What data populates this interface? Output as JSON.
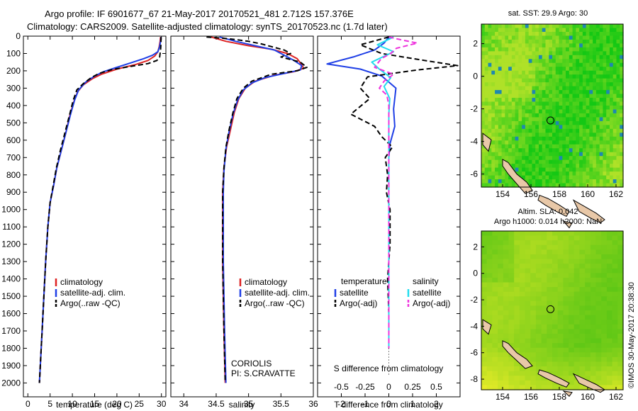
{
  "title": {
    "line1": "Argo profile: IF 6901677_67 21-May-2017 20170521_481 2.712S 157.376E",
    "line2": "Climatology: CARS2009. Satellite-adjusted climatology: synTS_20170523.nc (1.7d later)"
  },
  "colors": {
    "climatology": "#dd2222",
    "satellite": "#1f3fe6",
    "argo": "#000000",
    "sat_salinity": "#22ddee",
    "argo_salinity_adj": "#ee33dd"
  },
  "footer": {
    "institution": "CORIOLIS",
    "pi": "PI: S.CRAVATTE",
    "stamp": "©IMOS 30-May-2017 20:38:30"
  },
  "chart_data": [
    {
      "id": "temperature",
      "type": "line",
      "xlabel": "temperature (deg C)",
      "ylabel": "",
      "xlim": [
        -1,
        31
      ],
      "ylim": [
        2080,
        0
      ],
      "xticks": [
        0,
        5,
        10,
        15,
        20,
        25,
        30
      ],
      "yticks": [
        0,
        100,
        200,
        300,
        400,
        500,
        600,
        700,
        800,
        900,
        1000,
        1100,
        1200,
        1300,
        1400,
        1500,
        1600,
        1700,
        1800,
        1900,
        2000
      ],
      "legend": [
        "climatology",
        "satellite-adj. clim.",
        "Argo(..raw -QC)"
      ],
      "series": [
        {
          "name": "climatology",
          "style": "solid",
          "color_key": "climatology",
          "points": [
            [
              29.8,
              5
            ],
            [
              29.7,
              30
            ],
            [
              29.5,
              60
            ],
            [
              29.2,
              90
            ],
            [
              28.5,
              115
            ],
            [
              27,
              140
            ],
            [
              24,
              165
            ],
            [
              20,
              190
            ],
            [
              16.5,
              220
            ],
            [
              14.5,
              245
            ],
            [
              12.5,
              280
            ],
            [
              11.2,
              320
            ],
            [
              10.3,
              380
            ],
            [
              9.4,
              460
            ],
            [
              8.5,
              560
            ],
            [
              7.5,
              660
            ],
            [
              6.5,
              760
            ],
            [
              5.8,
              860
            ],
            [
              5,
              960
            ],
            [
              4.5,
              1100
            ],
            [
              4,
              1300
            ],
            [
              3.6,
              1500
            ],
            [
              3.2,
              1700
            ],
            [
              2.9,
              1850
            ],
            [
              2.6,
              2000
            ]
          ]
        },
        {
          "name": "satellite-adj. clim.",
          "style": "solid",
          "color_key": "satellite",
          "points": [
            [
              29.9,
              5
            ],
            [
              29.8,
              30
            ],
            [
              29.6,
              60
            ],
            [
              29.2,
              90
            ],
            [
              28,
              110
            ],
            [
              26,
              130
            ],
            [
              23,
              155
            ],
            [
              20,
              180
            ],
            [
              17,
              205
            ],
            [
              15,
              230
            ],
            [
              13,
              265
            ],
            [
              11.4,
              310
            ],
            [
              10.5,
              370
            ],
            [
              9.6,
              450
            ],
            [
              8.6,
              550
            ],
            [
              7.5,
              660
            ],
            [
              6.5,
              760
            ],
            [
              5.8,
              860
            ],
            [
              5,
              960
            ],
            [
              4.5,
              1100
            ],
            [
              4,
              1300
            ],
            [
              3.6,
              1500
            ],
            [
              3.2,
              1700
            ],
            [
              2.9,
              1850
            ],
            [
              2.6,
              2000
            ]
          ]
        },
        {
          "name": "Argo(..raw -QC)",
          "style": "dashed",
          "color_key": "argo",
          "points": [
            [
              29.9,
              5
            ],
            [
              29.9,
              40
            ],
            [
              29.8,
              80
            ],
            [
              29.6,
              120
            ],
            [
              29,
              140
            ],
            [
              27,
              158
            ],
            [
              23,
              175
            ],
            [
              19,
              192
            ],
            [
              16,
              215
            ],
            [
              14.2,
              240
            ],
            [
              12.4,
              275
            ],
            [
              11,
              310
            ],
            [
              10.2,
              370
            ],
            [
              9.5,
              440
            ],
            [
              8.5,
              540
            ],
            [
              7.3,
              660
            ],
            [
              6.4,
              760
            ],
            [
              5.7,
              860
            ],
            [
              5,
              960
            ],
            [
              4.5,
              1100
            ],
            [
              4,
              1300
            ],
            [
              3.6,
              1500
            ],
            [
              3.2,
              1700
            ],
            [
              2.9,
              1850
            ],
            [
              2.6,
              2000
            ]
          ]
        }
      ]
    },
    {
      "id": "salinity",
      "type": "line",
      "xlabel": "salinity",
      "ylabel": "",
      "xlim": [
        33.8,
        36.0
      ],
      "ylim": [
        2080,
        0
      ],
      "xticks": [
        34,
        34.5,
        35,
        35.5,
        36
      ],
      "legend": [
        "climatology",
        "satellite-adj. clim.",
        "Argo(..raw -QC)"
      ],
      "series": [
        {
          "name": "climatology",
          "style": "solid",
          "color_key": "climatology",
          "points": [
            [
              34.42,
              5
            ],
            [
              34.65,
              30
            ],
            [
              35.0,
              55
            ],
            [
              35.35,
              75
            ],
            [
              35.6,
              100
            ],
            [
              35.75,
              130
            ],
            [
              35.82,
              165
            ],
            [
              35.85,
              185
            ],
            [
              35.7,
              205
            ],
            [
              35.4,
              225
            ],
            [
              35.1,
              260
            ],
            [
              34.95,
              300
            ],
            [
              34.85,
              360
            ],
            [
              34.78,
              440
            ],
            [
              34.72,
              540
            ],
            [
              34.66,
              640
            ],
            [
              34.62,
              760
            ],
            [
              34.6,
              900
            ],
            [
              34.6,
              1100
            ],
            [
              34.6,
              1300
            ],
            [
              34.61,
              1500
            ],
            [
              34.62,
              1700
            ],
            [
              34.63,
              1850
            ],
            [
              34.64,
              2000
            ]
          ]
        },
        {
          "name": "satellite-adj. clim.",
          "style": "solid",
          "color_key": "satellite",
          "points": [
            [
              34.55,
              5
            ],
            [
              34.8,
              30
            ],
            [
              35.1,
              55
            ],
            [
              35.4,
              80
            ],
            [
              35.55,
              110
            ],
            [
              35.7,
              140
            ],
            [
              35.82,
              170
            ],
            [
              35.8,
              195
            ],
            [
              35.55,
              215
            ],
            [
              35.25,
              240
            ],
            [
              35.05,
              270
            ],
            [
              34.92,
              310
            ],
            [
              34.83,
              370
            ],
            [
              34.76,
              450
            ],
            [
              34.7,
              550
            ],
            [
              34.65,
              650
            ],
            [
              34.62,
              780
            ],
            [
              34.61,
              900
            ],
            [
              34.61,
              1100
            ],
            [
              34.61,
              1300
            ],
            [
              34.62,
              1500
            ],
            [
              34.63,
              1700
            ],
            [
              34.64,
              1850
            ],
            [
              34.65,
              2000
            ]
          ]
        },
        {
          "name": "Argo(..raw -QC)",
          "style": "dashed",
          "color_key": "argo",
          "points": [
            [
              34.35,
              5
            ],
            [
              34.7,
              15
            ],
            [
              35.0,
              30
            ],
            [
              35.2,
              45
            ],
            [
              35.35,
              60
            ],
            [
              35.55,
              80
            ],
            [
              35.65,
              100
            ],
            [
              35.5,
              120
            ],
            [
              35.8,
              150
            ],
            [
              35.9,
              180
            ],
            [
              35.75,
              200
            ],
            [
              35.35,
              220
            ],
            [
              35.05,
              260
            ],
            [
              34.92,
              300
            ],
            [
              34.82,
              360
            ],
            [
              34.76,
              440
            ],
            [
              34.7,
              540
            ],
            [
              34.65,
              640
            ],
            [
              34.62,
              760
            ],
            [
              34.6,
              900
            ],
            [
              34.6,
              1100
            ],
            [
              34.6,
              1300
            ],
            [
              34.61,
              1500
            ],
            [
              34.62,
              1700
            ],
            [
              34.63,
              1850
            ],
            [
              34.64,
              2000
            ]
          ]
        }
      ]
    },
    {
      "id": "differences",
      "type": "line",
      "xlabel": "T difference from climatology",
      "x2label": "S difference from climatology",
      "ylabel": "",
      "xlim": [
        -3,
        3
      ],
      "x2lim": [
        -0.75,
        0.75
      ],
      "ylim": [
        2080,
        0
      ],
      "xticks": [
        -2,
        -1,
        0,
        1,
        2
      ],
      "x2ticks": [
        -0.5,
        -0.25,
        0,
        0.25,
        0.5
      ],
      "x2ticklabels": [
        "-0.5",
        "-0.25",
        "0",
        "0.25",
        "0.5"
      ],
      "legend_headers": [
        "temperature",
        "salinity"
      ],
      "legend": [
        "satellite",
        "Argo(-adj)",
        "satellite",
        "Argo(-adj)"
      ],
      "series": [
        {
          "name": "T satellite",
          "style": "solid",
          "color_key": "satellite",
          "axis": "T",
          "points": [
            [
              0,
              5
            ],
            [
              -0.2,
              40
            ],
            [
              -0.6,
              80
            ],
            [
              -1.5,
              120
            ],
            [
              -2.6,
              160
            ],
            [
              -1.2,
              190
            ],
            [
              -0.3,
              230
            ],
            [
              0.3,
              300
            ],
            [
              0.2,
              420
            ],
            [
              0.25,
              520
            ],
            [
              0.05,
              620
            ],
            [
              0,
              700
            ],
            [
              0,
              900
            ],
            [
              0,
              1100
            ],
            [
              0,
              1300
            ],
            [
              0,
              1500
            ],
            [
              0,
              1700
            ],
            [
              0,
              1800
            ]
          ]
        },
        {
          "name": "T Argo(-adj)",
          "style": "dashed",
          "color_key": "argo",
          "axis": "T",
          "points": [
            [
              0,
              5
            ],
            [
              -1.2,
              50
            ],
            [
              -0.3,
              100
            ],
            [
              1.5,
              140
            ],
            [
              2.9,
              170
            ],
            [
              1.2,
              195
            ],
            [
              -0.9,
              235
            ],
            [
              -1.2,
              300
            ],
            [
              -0.8,
              360
            ],
            [
              -1.6,
              450
            ],
            [
              -0.6,
              520
            ],
            [
              -0.3,
              580
            ],
            [
              0.15,
              640
            ],
            [
              -0.15,
              700
            ],
            [
              -0.05,
              800
            ],
            [
              -0.1,
              900
            ],
            [
              0.05,
              1000
            ],
            [
              0.05,
              1200
            ],
            [
              -0.05,
              1400
            ],
            [
              0,
              1600
            ],
            [
              0,
              1800
            ]
          ]
        },
        {
          "name": "S satellite",
          "style": "solid",
          "color_key": "sat_salinity",
          "axis": "S",
          "points": [
            [
              0.05,
              5
            ],
            [
              -0.12,
              50
            ],
            [
              0.05,
              90
            ],
            [
              -0.18,
              150
            ],
            [
              -0.1,
              190
            ],
            [
              0.02,
              240
            ],
            [
              -0.05,
              290
            ],
            [
              0.01,
              360
            ],
            [
              0,
              450
            ],
            [
              0,
              600
            ],
            [
              0,
              900
            ],
            [
              0,
              1200
            ],
            [
              0,
              1500
            ],
            [
              0,
              1800
            ]
          ]
        },
        {
          "name": "S Argo(-adj)",
          "style": "dashed",
          "color_key": "argo_salinity_adj",
          "axis": "S",
          "points": [
            [
              0,
              5
            ],
            [
              0.12,
              20
            ],
            [
              0.3,
              40
            ],
            [
              0.08,
              70
            ],
            [
              0.02,
              100
            ],
            [
              -0.08,
              130
            ],
            [
              -0.15,
              180
            ],
            [
              0.05,
              220
            ],
            [
              -0.05,
              260
            ],
            [
              -0.1,
              300
            ],
            [
              -0.02,
              340
            ],
            [
              0,
              400
            ],
            [
              0,
              600
            ],
            [
              0,
              900
            ],
            [
              0,
              1200
            ],
            [
              0,
              1500
            ],
            [
              0,
              1800
            ]
          ]
        }
      ]
    },
    {
      "id": "sst_map",
      "type": "heatmap",
      "title": "sat. SST: 29.9 Argo: 30",
      "xlim": [
        152.5,
        162.5
      ],
      "ylim": [
        -6.8,
        3.2
      ],
      "xticks": [
        154,
        156,
        158,
        160,
        162
      ],
      "yticks": [
        2,
        0,
        -2,
        -4,
        -6
      ],
      "marker": {
        "lon": 157.376,
        "lat": -2.712
      }
    },
    {
      "id": "sla_map",
      "type": "heatmap",
      "title": "Altim. SLA: 0.042",
      "subtitle": "Argo h1000: 0.014 h2000: NaN",
      "xlim": [
        152.5,
        162.5
      ],
      "ylim": [
        -8.8,
        3.2
      ],
      "xticks": [
        154,
        156,
        158,
        160,
        162
      ],
      "yticks": [
        2,
        0,
        -2,
        -4,
        -6,
        -8
      ],
      "marker": {
        "lon": 157.376,
        "lat": -2.712
      }
    }
  ]
}
